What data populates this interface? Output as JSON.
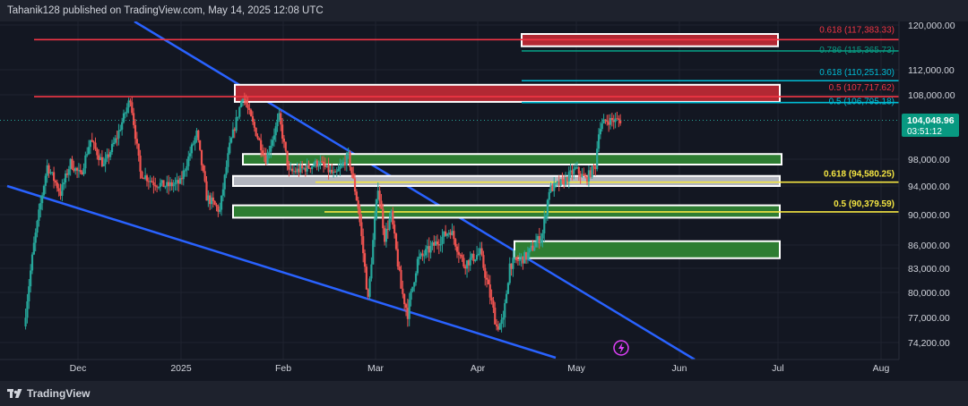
{
  "header": {
    "text": "Tahanik128 published on TradingView.com, May 14, 2025 12:08 UTC"
  },
  "footer": {
    "brand": "TradingView"
  },
  "colors": {
    "background": "#131722",
    "up": "#26a69a",
    "down": "#ef5350",
    "trendline": "#2962ff",
    "red_level": "#f23645",
    "teal_level": "#089981",
    "cyan_level": "#00bcd4",
    "yellow_level": "#f5e642",
    "green_zone": "#2e7d32",
    "red_zone": "#b22833",
    "grey_zone": "#b2b5be"
  },
  "chart_data": {
    "type": "candlestick",
    "symbol_price_label": "104,048.96",
    "countdown_label": "03:51:12",
    "y_ticks": [
      "120,000.00",
      "112,000.00",
      "108,000.00",
      "98,000.00",
      "94,000.00",
      "90,000.00",
      "86,000.00",
      "83,000.00",
      "80,000.00",
      "77,000.00",
      "74,200.00"
    ],
    "x_ticks": [
      "Dec",
      "2025",
      "Feb",
      "Mar",
      "Apr",
      "May",
      "Jun",
      "Jul",
      "Aug"
    ],
    "current_price": 104048.96,
    "price_path": [
      [
        "2024-11-15",
        76000
      ],
      [
        "2024-11-18",
        86000
      ],
      [
        "2024-11-22",
        97000
      ],
      [
        "2024-11-26",
        93000
      ],
      [
        "2024-11-29",
        97500
      ],
      [
        "2024-12-02",
        95500
      ],
      [
        "2024-12-05",
        101000
      ],
      [
        "2024-12-09",
        97000
      ],
      [
        "2024-12-13",
        101500
      ],
      [
        "2024-12-17",
        107500
      ],
      [
        "2024-12-20",
        96000
      ],
      [
        "2024-12-24",
        94500
      ],
      [
        "2024-12-28",
        94000
      ],
      [
        "2025-01-01",
        94500
      ],
      [
        "2025-01-06",
        102000
      ],
      [
        "2025-01-09",
        92500
      ],
      [
        "2025-01-13",
        90500
      ],
      [
        "2025-01-16",
        100000
      ],
      [
        "2025-01-20",
        108000
      ],
      [
        "2025-01-23",
        103500
      ],
      [
        "2025-01-27",
        98000
      ],
      [
        "2025-01-31",
        104500
      ],
      [
        "2025-02-03",
        96000
      ],
      [
        "2025-02-07",
        96500
      ],
      [
        "2025-02-12",
        97500
      ],
      [
        "2025-02-17",
        95500
      ],
      [
        "2025-02-21",
        98500
      ],
      [
        "2025-02-24",
        91000
      ],
      [
        "2025-02-27",
        79000
      ],
      [
        "2025-03-02",
        94000
      ],
      [
        "2025-03-04",
        87000
      ],
      [
        "2025-03-06",
        90000
      ],
      [
        "2025-03-09",
        80500
      ],
      [
        "2025-03-11",
        77500
      ],
      [
        "2025-03-14",
        84000
      ],
      [
        "2025-03-19",
        86000
      ],
      [
        "2025-03-24",
        88000
      ],
      [
        "2025-03-28",
        83500
      ],
      [
        "2025-04-02",
        85000
      ],
      [
        "2025-04-07",
        76000
      ],
      [
        "2025-04-09",
        76500
      ],
      [
        "2025-04-11",
        83500
      ],
      [
        "2025-04-16",
        84500
      ],
      [
        "2025-04-21",
        87500
      ],
      [
        "2025-04-23",
        93500
      ],
      [
        "2025-04-27",
        94500
      ],
      [
        "2025-05-01",
        96500
      ],
      [
        "2025-05-04",
        95000
      ],
      [
        "2025-05-07",
        97000
      ],
      [
        "2025-05-08",
        102500
      ],
      [
        "2025-05-10",
        104000
      ],
      [
        "2025-05-14",
        104048.96
      ]
    ],
    "levels": [
      {
        "label": "0.618 (117,383.33)",
        "price": 117383.33,
        "color": "#f23645"
      },
      {
        "label": "0.786 (115,365.73)",
        "price": 115365.73,
        "color": "#089981"
      },
      {
        "label": "0.618 (110,251.30)",
        "price": 110251.3,
        "color": "#00bcd4"
      },
      {
        "label": "0.5 (107,717.62)",
        "price": 107717.62,
        "color": "#f23645"
      },
      {
        "label": "0.5 (106,795.18)",
        "price": 106795.18,
        "color": "#00bcd4"
      },
      {
        "label": "0.618 (94,580.25)",
        "price": 94580.25,
        "color": "#f5e642"
      },
      {
        "label": "0.5 (90,379.59)",
        "price": 90379.59,
        "color": "#f5e642"
      }
    ],
    "zones": [
      {
        "name": "supply-zone-upper",
        "from": 116200,
        "to": 118400,
        "color": "#b22833"
      },
      {
        "name": "supply-zone-lower",
        "from": 106900,
        "to": 109600,
        "color": "#b22833"
      },
      {
        "name": "green-zone-1",
        "from": 97200,
        "to": 98800,
        "color": "#2e7d32"
      },
      {
        "name": "grey-zone",
        "from": 94000,
        "to": 95500,
        "color": "#b2b5be"
      },
      {
        "name": "green-zone-2",
        "from": 89600,
        "to": 91300,
        "color": "#2e7d32"
      },
      {
        "name": "green-zone-3",
        "from": 84300,
        "to": 86500,
        "color": "#2e7d32"
      }
    ]
  }
}
